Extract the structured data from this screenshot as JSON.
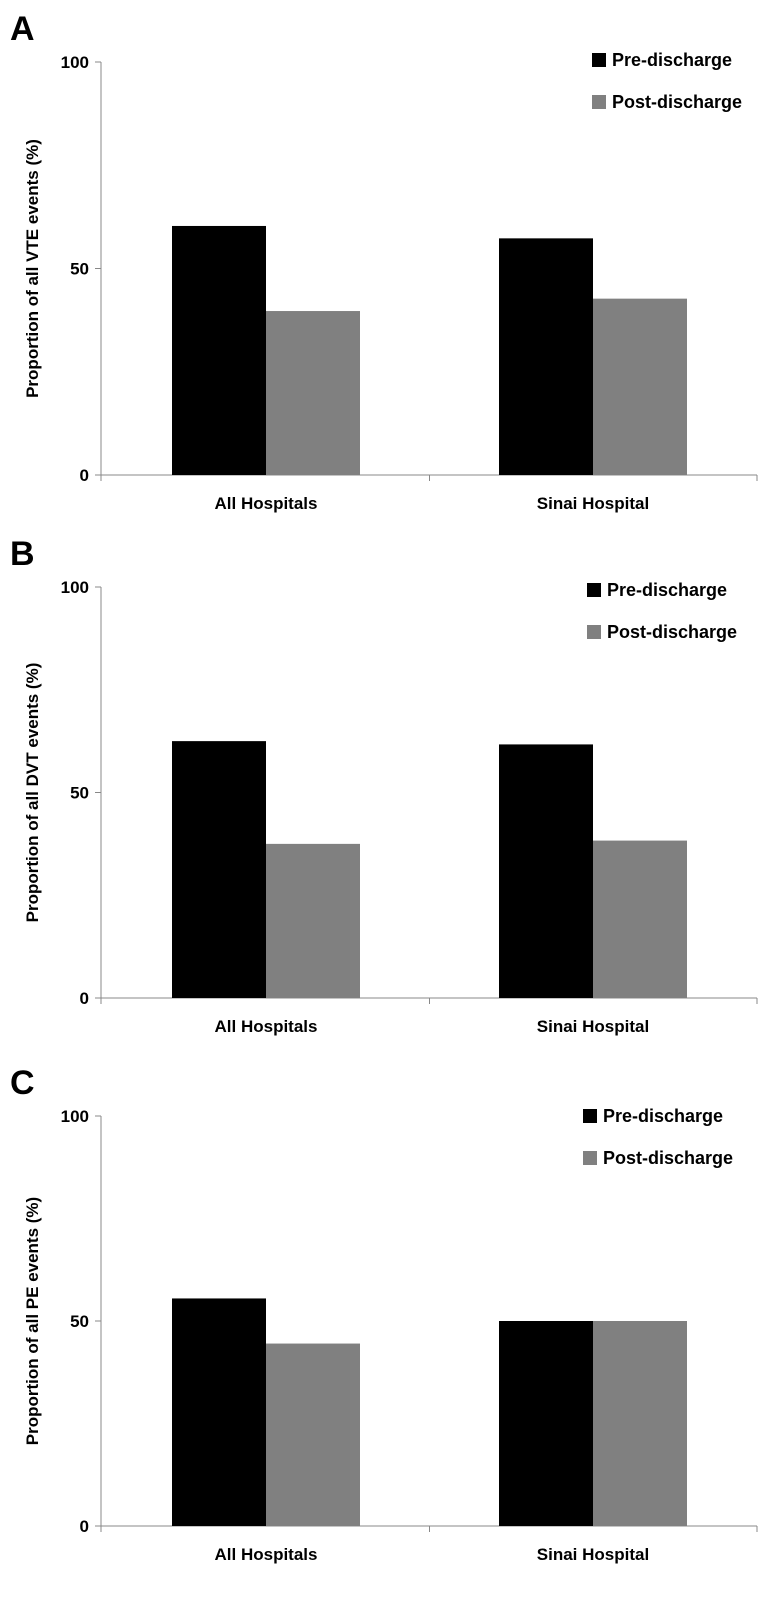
{
  "chart_data": [
    {
      "type": "bar",
      "panel_label": "A",
      "categories": [
        "All Hospitals",
        "Sinai Hospital"
      ],
      "series": [
        {
          "name": "Pre-discharge",
          "values": [
            60.3,
            57.3
          ],
          "color": "#000000"
        },
        {
          "name": "Post-discharge",
          "values": [
            39.7,
            42.7
          ],
          "color": "#808080"
        }
      ],
      "ylabel": "Proportion of all VTE events (%)",
      "ylim": [
        0,
        100
      ],
      "yticks": [
        0,
        50,
        100
      ],
      "grid": false,
      "legend_position": "top-right"
    },
    {
      "type": "bar",
      "panel_label": "B",
      "categories": [
        "All Hospitals",
        "Sinai Hospital"
      ],
      "series": [
        {
          "name": "Pre-discharge",
          "values": [
            62.5,
            61.7
          ],
          "color": "#000000"
        },
        {
          "name": "Post-discharge",
          "values": [
            37.5,
            38.3
          ],
          "color": "#808080"
        }
      ],
      "ylabel": "Proportion of all DVT events (%)",
      "ylim": [
        0,
        100
      ],
      "yticks": [
        0,
        50,
        100
      ],
      "grid": false,
      "legend_position": "top-right"
    },
    {
      "type": "bar",
      "panel_label": "C",
      "categories": [
        "All Hospitals",
        "Sinai Hospital"
      ],
      "series": [
        {
          "name": "Pre-discharge",
          "values": [
            55.5,
            50.0
          ],
          "color": "#000000"
        },
        {
          "name": "Post-discharge",
          "values": [
            44.5,
            50.0
          ],
          "color": "#808080"
        }
      ],
      "ylabel": "Proportion of all PE events (%)",
      "ylim": [
        0,
        100
      ],
      "yticks": [
        0,
        50,
        100
      ],
      "grid": false,
      "legend_position": "top-right"
    }
  ]
}
